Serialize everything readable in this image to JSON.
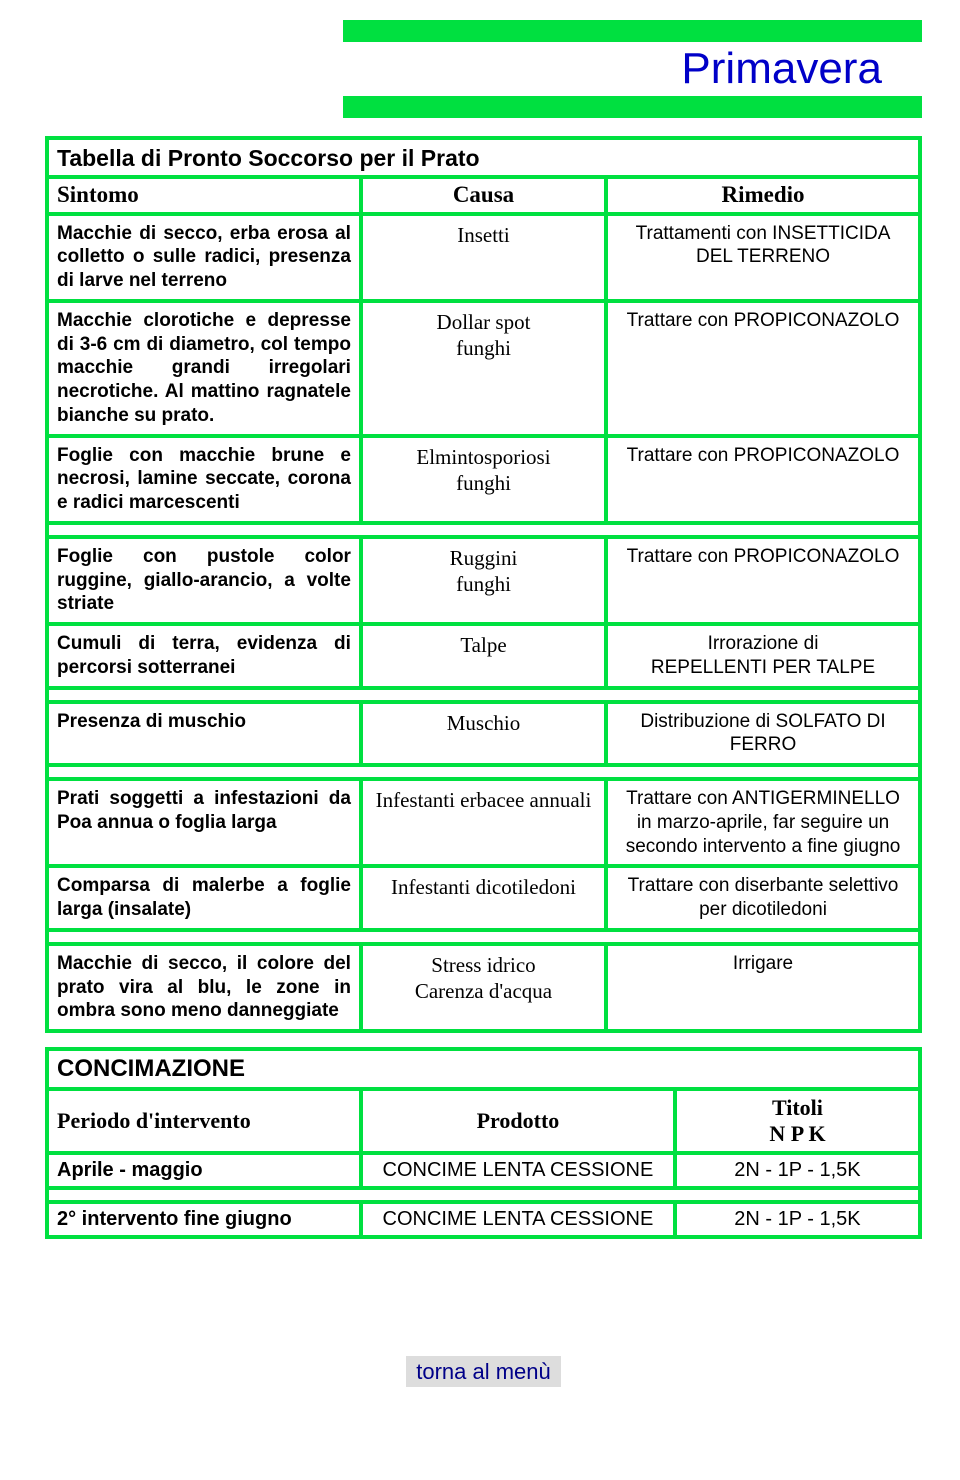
{
  "colors": {
    "accent_green": "#00e040",
    "title_blue": "#0000c8",
    "link_bg": "#dddddd",
    "link_fg": "#000088",
    "body_text": "#000000",
    "page_bg": "#ffffff"
  },
  "season_title": "Primavera",
  "subtitle": "Tabella di Pronto Soccorso per il Prato",
  "headers": {
    "sintomo": "Sintomo",
    "causa": "Causa",
    "rimedio": "Rimedio"
  },
  "groups": [
    {
      "rows": [
        {
          "sintomo": "Macchie di secco, erba erosa al colletto o sulle radici, presenza di larve nel terreno",
          "causa": "Insetti",
          "rimedio": "Trattamenti con INSETTICIDA DEL TERRENO"
        },
        {
          "sintomo": "Macchie clorotiche e depresse di 3-6 cm di diametro, col tempo macchie grandi irregolari necrotiche. Al mattino ragnatele bianche su prato.",
          "causa": "Dollar spot\nfunghi",
          "rimedio": "Trattare con PROPICONAZOLO"
        },
        {
          "sintomo": "Foglie con macchie brune e necrosi, lamine seccate, corona e radici marcescenti",
          "causa": "Elmintosporiosi\nfunghi",
          "rimedio": "Trattare con PROPICONAZOLO"
        }
      ]
    },
    {
      "rows": [
        {
          "sintomo": "Foglie con pustole color ruggine, giallo-arancio, a volte striate",
          "causa": "Ruggini\nfunghi",
          "rimedio": "Trattare con PROPICONAZOLO"
        },
        {
          "sintomo": "Cumuli di terra, evidenza di percorsi sotterranei",
          "causa": "Talpe",
          "rimedio": "Irrorazione di\nREPELLENTI PER TALPE"
        }
      ]
    },
    {
      "rows": [
        {
          "sintomo": "Presenza di muschio",
          "causa": "Muschio",
          "rimedio": "Distribuzione di SOLFATO DI FERRO"
        }
      ]
    },
    {
      "rows": [
        {
          "sintomo": "Prati soggetti a infestazioni da Poa annua o foglia larga",
          "causa": "Infestanti erbacee annuali",
          "rimedio": "Trattare con ANTIGERMINELLO\nin marzo-aprile, far seguire  un secondo intervento a fine giugno"
        },
        {
          "sintomo": "Comparsa di malerbe a foglie larga (insalate)",
          "causa": "Infestanti dicotiledoni",
          "rimedio": "Trattare con diserbante selettivo per dicotiledoni"
        }
      ]
    },
    {
      "rows": [
        {
          "sintomo": "Macchie di secco, il colore del prato vira al blu, le zone in ombra sono meno danneggiate",
          "causa": "Stress idrico\nCarenza d'acqua",
          "rimedio": "Irrigare"
        }
      ]
    }
  ],
  "concimazione": {
    "title": "CONCIMAZIONE",
    "headers": {
      "periodo": "Periodo d'intervento",
      "prodotto": "Prodotto",
      "titoli": "Titoli\nN  P  K"
    },
    "rows": [
      {
        "periodo": "Aprile - maggio",
        "prodotto": "CONCIME LENTA CESSIONE",
        "titoli": "2N - 1P - 1,5K"
      },
      {
        "periodo": "2° intervento fine giugno",
        "prodotto": "CONCIME LENTA CESSIONE",
        "titoli": "2N - 1P - 1,5K"
      }
    ]
  },
  "footer_link": "torna al menù"
}
